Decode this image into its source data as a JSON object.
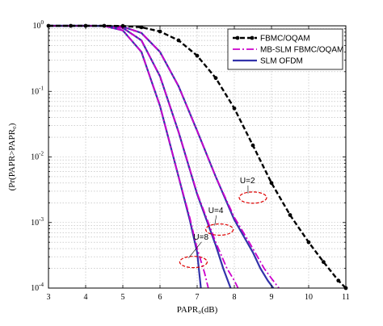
{
  "chart_data": {
    "type": "line",
    "xlabel": "PAPR₀(dB)",
    "ylabel": "(Pr(PAPR>PAPR₀)",
    "xlim": [
      3,
      11
    ],
    "ylim": [
      0.0001,
      1
    ],
    "yscale": "log",
    "grid": true,
    "legend_position": "top-right",
    "x_ticks": [
      "3",
      "4",
      "5",
      "6",
      "7",
      "8",
      "9",
      "10",
      "11"
    ],
    "y_ticks": [
      {
        "base": "10",
        "exp": "0"
      },
      {
        "base": "10",
        "exp": "-1"
      },
      {
        "base": "10",
        "exp": "-2"
      },
      {
        "base": "10",
        "exp": "-3"
      },
      {
        "base": "10",
        "exp": "-4"
      }
    ],
    "series": [
      {
        "name": "FBMC/OQAM",
        "color": "#000000",
        "style": "dashed-marker",
        "x": [
          3.0,
          3.6,
          4.0,
          4.5,
          5.0,
          5.5,
          6.0,
          6.5,
          7.0,
          7.5,
          8.0,
          8.5,
          9.0,
          9.5,
          10.0,
          10.4,
          10.8,
          11.0
        ],
        "y": [
          1.0,
          1.0,
          1.0,
          1.0,
          0.995,
          0.95,
          0.82,
          0.6,
          0.35,
          0.16,
          0.055,
          0.015,
          0.004,
          0.0013,
          0.0005,
          0.00025,
          0.00013,
          0.0001
        ]
      },
      {
        "name": "MB-SLM FBMC/OQAM",
        "color": "#cc00cc",
        "style": "dash-dot",
        "curves": [
          {
            "label": "U=2",
            "x": [
              3.0,
              4.0,
              4.5,
              5.0,
              5.5,
              6.0,
              6.5,
              7.0,
              7.5,
              8.0,
              8.5,
              8.8,
              9.0,
              9.2
            ],
            "y": [
              1.0,
              1.0,
              0.999,
              0.97,
              0.78,
              0.4,
              0.12,
              0.025,
              0.005,
              0.0012,
              0.0004,
              0.0002,
              0.00014,
              0.0001
            ]
          },
          {
            "label": "U=4",
            "x": [
              3.0,
              4.0,
              4.5,
              5.0,
              5.5,
              6.0,
              6.5,
              7.0,
              7.5,
              7.8,
              8.0,
              8.1
            ],
            "y": [
              1.0,
              1.0,
              0.998,
              0.93,
              0.6,
              0.17,
              0.024,
              0.0028,
              0.0005,
              0.0002,
              0.00013,
              0.0001
            ]
          },
          {
            "label": "U=8",
            "x": [
              3.0,
              4.0,
              4.5,
              5.0,
              5.5,
              6.0,
              6.5,
              6.8,
              7.0,
              7.2,
              7.3
            ],
            "y": [
              1.0,
              1.0,
              0.995,
              0.85,
              0.4,
              0.06,
              0.005,
              0.0012,
              0.0004,
              0.00017,
              0.0001
            ]
          }
        ]
      },
      {
        "name": "SLM OFDM",
        "color": "#3333aa",
        "style": "solid",
        "curves": [
          {
            "label": "U=2",
            "x": [
              3.0,
              4.0,
              4.5,
              5.0,
              5.5,
              6.0,
              6.5,
              7.0,
              7.5,
              8.0,
              8.5,
              8.7,
              8.9,
              9.05
            ],
            "y": [
              1.0,
              1.0,
              0.999,
              0.97,
              0.78,
              0.4,
              0.12,
              0.025,
              0.005,
              0.0011,
              0.00035,
              0.0002,
              0.00013,
              0.0001
            ]
          },
          {
            "label": "U=4",
            "x": [
              3.0,
              4.0,
              4.5,
              5.0,
              5.5,
              6.0,
              6.5,
              7.0,
              7.5,
              7.7,
              7.9
            ],
            "y": [
              1.0,
              1.0,
              0.998,
              0.93,
              0.6,
              0.17,
              0.024,
              0.0027,
              0.00045,
              0.0002,
              0.0001
            ]
          },
          {
            "label": "U=8",
            "x": [
              3.0,
              4.0,
              4.5,
              5.0,
              5.5,
              6.0,
              6.5,
              6.8,
              7.0,
              7.1
            ],
            "y": [
              1.0,
              1.0,
              0.995,
              0.85,
              0.4,
              0.06,
              0.005,
              0.0011,
              0.00035,
              0.0001
            ]
          }
        ]
      }
    ],
    "annotations": [
      {
        "text": "U=2",
        "at": [
          8.5,
          0.0024
        ],
        "text_at": [
          8.15,
          0.004
        ]
      },
      {
        "text": "U=4",
        "at": [
          7.6,
          0.00078
        ],
        "text_at": [
          7.3,
          0.0014
        ]
      },
      {
        "text": "U=8",
        "at": [
          6.9,
          0.00025
        ],
        "text_at": [
          6.9,
          0.00055
        ]
      }
    ],
    "annotation_color": "#dd0000",
    "grid_color": "#b4b4b4",
    "legend_entries": [
      {
        "label": "FBMC/OQAM",
        "color": "#000000",
        "style": "dashed-marker"
      },
      {
        "label": "MB-SLM FBMC/OQAM",
        "color": "#cc00cc",
        "style": "dash-dot"
      },
      {
        "label": "SLM OFDM",
        "color": "#3333aa",
        "style": "solid"
      }
    ]
  }
}
